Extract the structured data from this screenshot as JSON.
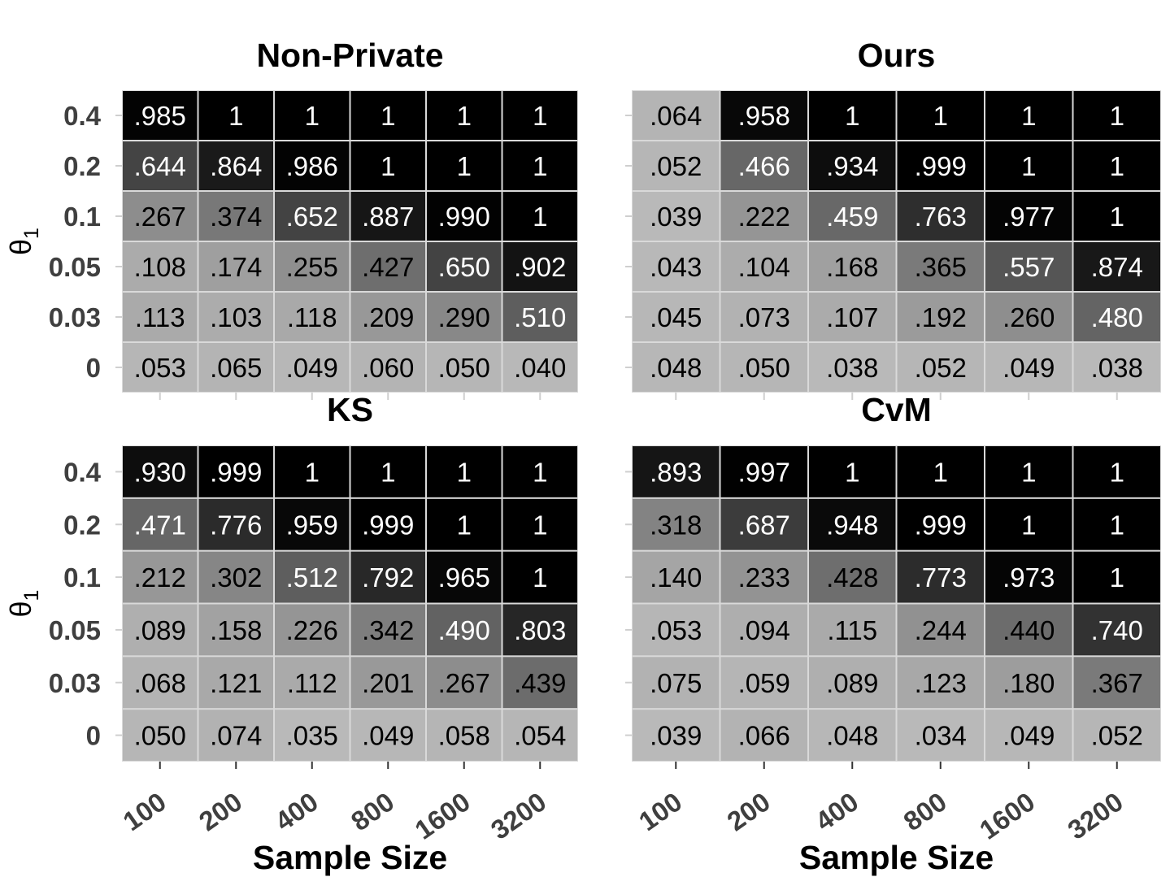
{
  "chart_data": [
    {
      "type": "heatmap",
      "title": "Non-Private",
      "xlabel": "",
      "ylabel": "θ1",
      "x": [
        "100",
        "200",
        "400",
        "800",
        "1600",
        "3200"
      ],
      "y": [
        "0.4",
        "0.2",
        "0.1",
        "0.05",
        "0.03",
        "0"
      ],
      "values": [
        [
          0.985,
          1,
          1,
          1,
          1,
          1
        ],
        [
          0.644,
          0.864,
          0.986,
          1,
          1,
          1
        ],
        [
          0.267,
          0.374,
          0.652,
          0.887,
          0.99,
          1
        ],
        [
          0.108,
          0.174,
          0.255,
          0.427,
          0.65,
          0.902
        ],
        [
          0.113,
          0.103,
          0.118,
          0.209,
          0.29,
          0.51
        ],
        [
          0.053,
          0.065,
          0.049,
          0.06,
          0.05,
          0.04
        ]
      ],
      "labels": [
        [
          ".985",
          "1",
          "1",
          "1",
          "1",
          "1"
        ],
        [
          ".644",
          ".864",
          ".986",
          "1",
          "1",
          "1"
        ],
        [
          ".267",
          ".374",
          ".652",
          ".887",
          ".990",
          "1"
        ],
        [
          ".108",
          ".174",
          ".255",
          ".427",
          ".650",
          ".902"
        ],
        [
          ".113",
          ".103",
          ".118",
          ".209",
          ".290",
          ".510"
        ],
        [
          ".053",
          ".065",
          ".049",
          ".060",
          ".050",
          ".040"
        ]
      ]
    },
    {
      "type": "heatmap",
      "title": "Ours",
      "xlabel": "",
      "ylabel": "",
      "x": [
        "100",
        "200",
        "400",
        "800",
        "1600",
        "3200"
      ],
      "y": [
        "0.4",
        "0.2",
        "0.1",
        "0.05",
        "0.03",
        "0"
      ],
      "values": [
        [
          0.064,
          0.958,
          1,
          1,
          1,
          1
        ],
        [
          0.052,
          0.466,
          0.934,
          0.999,
          1,
          1
        ],
        [
          0.039,
          0.222,
          0.459,
          0.763,
          0.977,
          1
        ],
        [
          0.043,
          0.104,
          0.168,
          0.365,
          0.557,
          0.874
        ],
        [
          0.045,
          0.073,
          0.107,
          0.192,
          0.26,
          0.48
        ],
        [
          0.048,
          0.05,
          0.038,
          0.052,
          0.049,
          0.038
        ]
      ],
      "labels": [
        [
          ".064",
          ".958",
          "1",
          "1",
          "1",
          "1"
        ],
        [
          ".052",
          ".466",
          ".934",
          ".999",
          "1",
          "1"
        ],
        [
          ".039",
          ".222",
          ".459",
          ".763",
          ".977",
          "1"
        ],
        [
          ".043",
          ".104",
          ".168",
          ".365",
          ".557",
          ".874"
        ],
        [
          ".045",
          ".073",
          ".107",
          ".192",
          ".260",
          ".480"
        ],
        [
          ".048",
          ".050",
          ".038",
          ".052",
          ".049",
          ".038"
        ]
      ]
    },
    {
      "type": "heatmap",
      "title": "KS",
      "xlabel": "Sample Size",
      "ylabel": "θ1",
      "x": [
        "100",
        "200",
        "400",
        "800",
        "1600",
        "3200"
      ],
      "y": [
        "0.4",
        "0.2",
        "0.1",
        "0.05",
        "0.03",
        "0"
      ],
      "values": [
        [
          0.93,
          0.999,
          1,
          1,
          1,
          1
        ],
        [
          0.471,
          0.776,
          0.959,
          0.999,
          1,
          1
        ],
        [
          0.212,
          0.302,
          0.512,
          0.792,
          0.965,
          1
        ],
        [
          0.089,
          0.158,
          0.226,
          0.342,
          0.49,
          0.803
        ],
        [
          0.068,
          0.121,
          0.112,
          0.201,
          0.267,
          0.439
        ],
        [
          0.05,
          0.074,
          0.035,
          0.049,
          0.058,
          0.054
        ]
      ],
      "labels": [
        [
          ".930",
          ".999",
          "1",
          "1",
          "1",
          "1"
        ],
        [
          ".471",
          ".776",
          ".959",
          ".999",
          "1",
          "1"
        ],
        [
          ".212",
          ".302",
          ".512",
          ".792",
          ".965",
          "1"
        ],
        [
          ".089",
          ".158",
          ".226",
          ".342",
          ".490",
          ".803"
        ],
        [
          ".068",
          ".121",
          ".112",
          ".201",
          ".267",
          ".439"
        ],
        [
          ".050",
          ".074",
          ".035",
          ".049",
          ".058",
          ".054"
        ]
      ]
    },
    {
      "type": "heatmap",
      "title": "CvM",
      "xlabel": "Sample Size",
      "ylabel": "",
      "x": [
        "100",
        "200",
        "400",
        "800",
        "1600",
        "3200"
      ],
      "y": [
        "0.4",
        "0.2",
        "0.1",
        "0.05",
        "0.03",
        "0"
      ],
      "values": [
        [
          0.893,
          0.997,
          1,
          1,
          1,
          1
        ],
        [
          0.318,
          0.687,
          0.948,
          0.999,
          1,
          1
        ],
        [
          0.14,
          0.233,
          0.428,
          0.773,
          0.973,
          1
        ],
        [
          0.053,
          0.094,
          0.115,
          0.244,
          0.44,
          0.74
        ],
        [
          0.075,
          0.059,
          0.089,
          0.123,
          0.18,
          0.367
        ],
        [
          0.039,
          0.066,
          0.048,
          0.034,
          0.049,
          0.052
        ]
      ],
      "labels": [
        [
          ".893",
          ".997",
          "1",
          "1",
          "1",
          "1"
        ],
        [
          ".318",
          ".687",
          ".948",
          ".999",
          "1",
          "1"
        ],
        [
          ".140",
          ".233",
          ".428",
          ".773",
          ".973",
          "1"
        ],
        [
          ".053",
          ".094",
          ".115",
          ".244",
          ".440",
          ".740"
        ],
        [
          ".075",
          ".059",
          ".089",
          ".123",
          ".180",
          ".367"
        ],
        [
          ".039",
          ".066",
          ".048",
          ".034",
          ".049",
          ".052"
        ]
      ]
    }
  ],
  "colors": {
    "low": "#c0c0c0",
    "high": "#000000",
    "cell_border": "#d9d9d9",
    "tick_text": "#3f3f3f"
  }
}
